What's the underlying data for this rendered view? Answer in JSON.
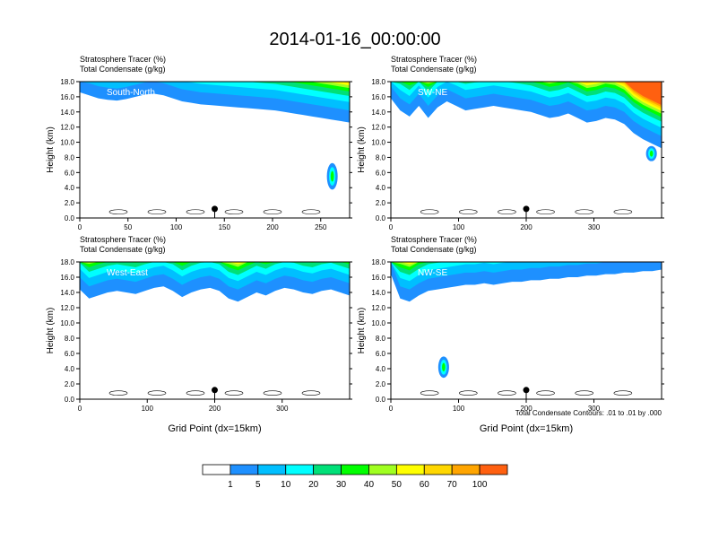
{
  "title": "2014-01-16_00:00:00",
  "chart_data": {
    "type": "heatmap",
    "title": "2014-01-16_00:00:00",
    "colors": {
      "levels": [
        "#ffffff",
        "#1e90ff",
        "#00bfff",
        "#00ffff",
        "#00e078",
        "#00ff00",
        "#a0ff20",
        "#ffff00",
        "#ffd700",
        "#ffa500",
        "#ff6010",
        "#ff2020"
      ]
    },
    "legend": {
      "labels": [
        "1",
        "5",
        "10",
        "20",
        "30",
        "40",
        "50",
        "60",
        "70",
        "100"
      ],
      "placement": "bottom-center"
    },
    "footnote": "Total Condensate Contours: .01 to .01 by .000",
    "panels": [
      {
        "name": "South-North",
        "label": "South-North",
        "subtitle_line1": "Stratosphere Tracer   (%)",
        "subtitle_line2": "Total Condensate   (g/kg)",
        "ylabel": "Height (km)",
        "xlabel": "",
        "xlim": [
          0,
          280
        ],
        "xticks": [
          "0",
          "50",
          "100",
          "150",
          "200",
          "250"
        ],
        "xtick_values": [
          0,
          50,
          100,
          150,
          200,
          250
        ],
        "ylim": [
          0,
          18
        ],
        "yticks": [
          "0.0",
          "2.0",
          "4.0",
          "6.0",
          "8.0",
          "10.0",
          "12.0",
          "14.0",
          "16.0",
          "18.0"
        ],
        "marker_x": 140,
        "band": [
          16.6,
          16.2,
          15.8,
          15.6,
          15.5,
          15.7,
          16.0,
          16.3,
          16.4,
          16.2,
          15.8,
          15.4,
          15.2,
          15.0,
          14.9,
          14.8,
          14.7,
          14.6,
          14.5,
          14.4,
          14.3,
          14.2,
          14.0,
          13.8,
          13.6,
          13.4,
          13.2,
          13.0,
          12.8,
          12.6
        ],
        "spots": [
          {
            "x": 262,
            "y": 5.5,
            "h": 3.5
          }
        ]
      },
      {
        "name": "SW-NE",
        "label": "SW-NE",
        "subtitle_line1": "Stratosphere Tracer   (%)",
        "subtitle_line2": "Total Condensate   (g/kg)",
        "ylabel": "Height (km)",
        "xlabel": "",
        "xlim": [
          0,
          400
        ],
        "xticks": [
          "0",
          "100",
          "200",
          "300"
        ],
        "xtick_values": [
          0,
          100,
          200,
          300
        ],
        "ylim": [
          0,
          18
        ],
        "yticks": [
          "0.0",
          "2.0",
          "4.0",
          "6.0",
          "8.0",
          "10.0",
          "12.0",
          "14.0",
          "16.0",
          "18.0"
        ],
        "marker_x": 200,
        "band": [
          15.8,
          14.2,
          13.4,
          14.8,
          13.2,
          14.6,
          15.4,
          14.8,
          14.2,
          14.4,
          14.6,
          14.8,
          14.6,
          14.4,
          14.2,
          14.0,
          13.6,
          13.2,
          13.4,
          13.8,
          13.2,
          12.6,
          12.8,
          13.2,
          13.0,
          12.4,
          11.2,
          10.4,
          9.8,
          9.2
        ],
        "spots": [
          {
            "x": 385,
            "y": 8.5,
            "h": 2.0
          }
        ]
      },
      {
        "name": "West-East",
        "label": "West-East",
        "subtitle_line1": "Stratosphere Tracer   (%)",
        "subtitle_line2": "Total Condensate   (g/kg)",
        "ylabel": "Height (km)",
        "xlabel": "Grid Point (dx=15km)",
        "xlim": [
          0,
          400
        ],
        "xticks": [
          "0",
          "100",
          "200",
          "300"
        ],
        "xtick_values": [
          0,
          100,
          200,
          300
        ],
        "ylim": [
          0,
          18
        ],
        "yticks": [
          "0.0",
          "2.0",
          "4.0",
          "6.0",
          "8.0",
          "10.0",
          "12.0",
          "14.0",
          "16.0",
          "18.0"
        ],
        "marker_x": 200,
        "band": [
          14.4,
          13.2,
          13.6,
          14.0,
          14.2,
          14.0,
          13.8,
          14.2,
          14.6,
          14.8,
          14.2,
          13.4,
          14.0,
          14.4,
          14.6,
          14.2,
          13.2,
          12.8,
          13.4,
          14.0,
          13.6,
          14.2,
          14.6,
          14.4,
          14.0,
          13.8,
          14.2,
          14.4,
          14.0,
          13.6
        ],
        "spots": []
      },
      {
        "name": "NW-SE",
        "label": "NW-SE",
        "subtitle_line1": "Stratosphere Tracer   (%)",
        "subtitle_line2": "Total Condensate   (g/kg)",
        "ylabel": "Height (km)",
        "xlabel": "Grid Point (dx=15km)",
        "xlim": [
          0,
          400
        ],
        "xticks": [
          "0",
          "100",
          "200",
          "300"
        ],
        "xtick_values": [
          0,
          100,
          200,
          300
        ],
        "ylim": [
          0,
          18
        ],
        "yticks": [
          "0.0",
          "2.0",
          "4.0",
          "6.0",
          "8.0",
          "10.0",
          "12.0",
          "14.0",
          "16.0",
          "18.0"
        ],
        "marker_x": 200,
        "band": [
          16.4,
          13.2,
          12.8,
          13.6,
          14.2,
          14.4,
          14.6,
          14.8,
          15.0,
          15.0,
          15.2,
          15.0,
          15.2,
          15.4,
          15.4,
          15.6,
          15.6,
          15.8,
          15.8,
          16.0,
          16.0,
          16.2,
          16.2,
          16.4,
          16.4,
          16.6,
          16.6,
          16.8,
          16.8,
          17.0
        ],
        "spots": [
          {
            "x": 78,
            "y": 4.2,
            "h": 2.8
          }
        ]
      }
    ]
  }
}
